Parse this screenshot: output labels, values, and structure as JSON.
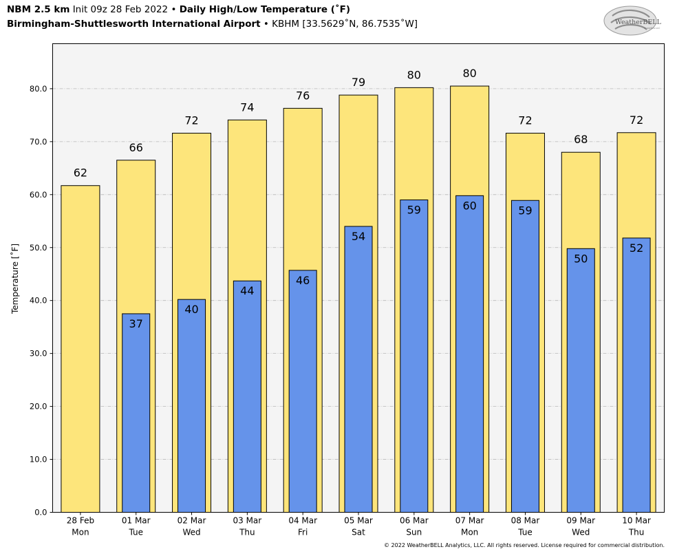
{
  "header": {
    "model": "NBM 2.5 km",
    "init": "Init 09z 28 Feb 2022",
    "separator": "•",
    "product": "Daily High/Low Temperature (˚F)",
    "station": "Birmingham-Shuttlesworth International Airport",
    "station_id": "KBHM [33.5629˚N, 86.7535˚W]"
  },
  "logo": {
    "text": "WeatherBELL",
    "subtext": "Analytics LLC"
  },
  "copyright": "© 2022 WeatherBELL Analytics, LLC. All rights reserved. License required for commercial distribution.",
  "chart_data": {
    "type": "bar",
    "ylabel": "Temperature [˚F]",
    "xlabel": "",
    "ylim": [
      0,
      88.5
    ],
    "yticks": [
      "0.0",
      "10.0",
      "20.0",
      "30.0",
      "40.0",
      "50.0",
      "60.0",
      "70.0",
      "80.0"
    ],
    "grid": true,
    "categories": [
      [
        "28 Feb",
        "Mon"
      ],
      [
        "01 Mar",
        "Tue"
      ],
      [
        "02 Mar",
        "Wed"
      ],
      [
        "03 Mar",
        "Thu"
      ],
      [
        "04 Mar",
        "Fri"
      ],
      [
        "05 Mar",
        "Sat"
      ],
      [
        "06 Mar",
        "Sun"
      ],
      [
        "07 Mar",
        "Mon"
      ],
      [
        "08 Mar",
        "Tue"
      ],
      [
        "09 Mar",
        "Wed"
      ],
      [
        "10 Mar",
        "Thu"
      ]
    ],
    "series": [
      {
        "values": [
          61.7,
          66.5,
          71.6,
          74.1,
          76.3,
          78.8,
          80.2,
          80.5,
          71.6,
          68.0,
          71.7
        ],
        "labels": [
          "62",
          "66",
          "72",
          "74",
          "76",
          "79",
          "80",
          "80",
          "72",
          "68",
          "72"
        ]
      },
      {
        "values": [
          null,
          37.5,
          40.2,
          43.7,
          45.7,
          54.0,
          59.0,
          59.8,
          58.9,
          49.8,
          51.8
        ],
        "labels": [
          "",
          "37",
          "40",
          "44",
          "46",
          "54",
          "59",
          "60",
          "59",
          "50",
          "52"
        ]
      }
    ],
    "colors": {
      "high": "#fde57b",
      "low": "#6593ea",
      "plot_bg": "#f4f4f4",
      "grid": "#b8b8b8"
    }
  }
}
